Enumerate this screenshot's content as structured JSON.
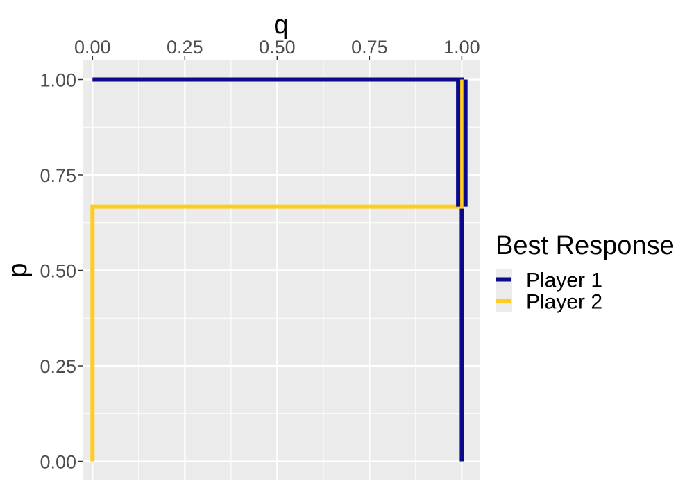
{
  "chart_data": {
    "type": "line",
    "title": "",
    "xlabel": "q",
    "ylabel": "p",
    "xlim": [
      -0.025,
      1.05
    ],
    "ylim": [
      -0.05,
      1.05
    ],
    "x_axis_position": "top",
    "x_ticks": [
      0,
      0.25,
      0.5,
      0.75,
      1
    ],
    "x_tick_labels": [
      "0.00",
      "0.25",
      "0.50",
      "0.75",
      "1.00"
    ],
    "y_ticks": [
      0,
      0.25,
      0.5,
      0.75,
      1
    ],
    "y_tick_labels": [
      "0.00",
      "0.25",
      "0.50",
      "0.75",
      "1.00"
    ],
    "grid": true,
    "legend": {
      "title": "Best Response",
      "position": "right"
    },
    "series": [
      {
        "name": "Player 1",
        "color": "#0b0b8a",
        "points": [
          [
            0,
            1
          ],
          [
            1,
            1
          ],
          [
            1,
            0.667
          ],
          [
            1,
            0
          ]
        ]
      },
      {
        "name": "Player 2",
        "color": "#ffcd21",
        "points": [
          [
            0,
            0
          ],
          [
            0,
            0.667
          ],
          [
            1,
            0.667
          ],
          [
            1,
            1
          ]
        ]
      }
    ],
    "overlap_marks": [
      {
        "series": "Player 1",
        "color": "#0b0b8a",
        "points": [
          [
            0.99,
            0.667
          ],
          [
            0.99,
            1
          ]
        ]
      },
      {
        "series": "Player 1",
        "color": "#0b0b8a",
        "points": [
          [
            1.01,
            0.667
          ],
          [
            1.01,
            1
          ]
        ]
      }
    ],
    "panel_background": "#ebebeb",
    "grid_color": "#ffffff"
  }
}
